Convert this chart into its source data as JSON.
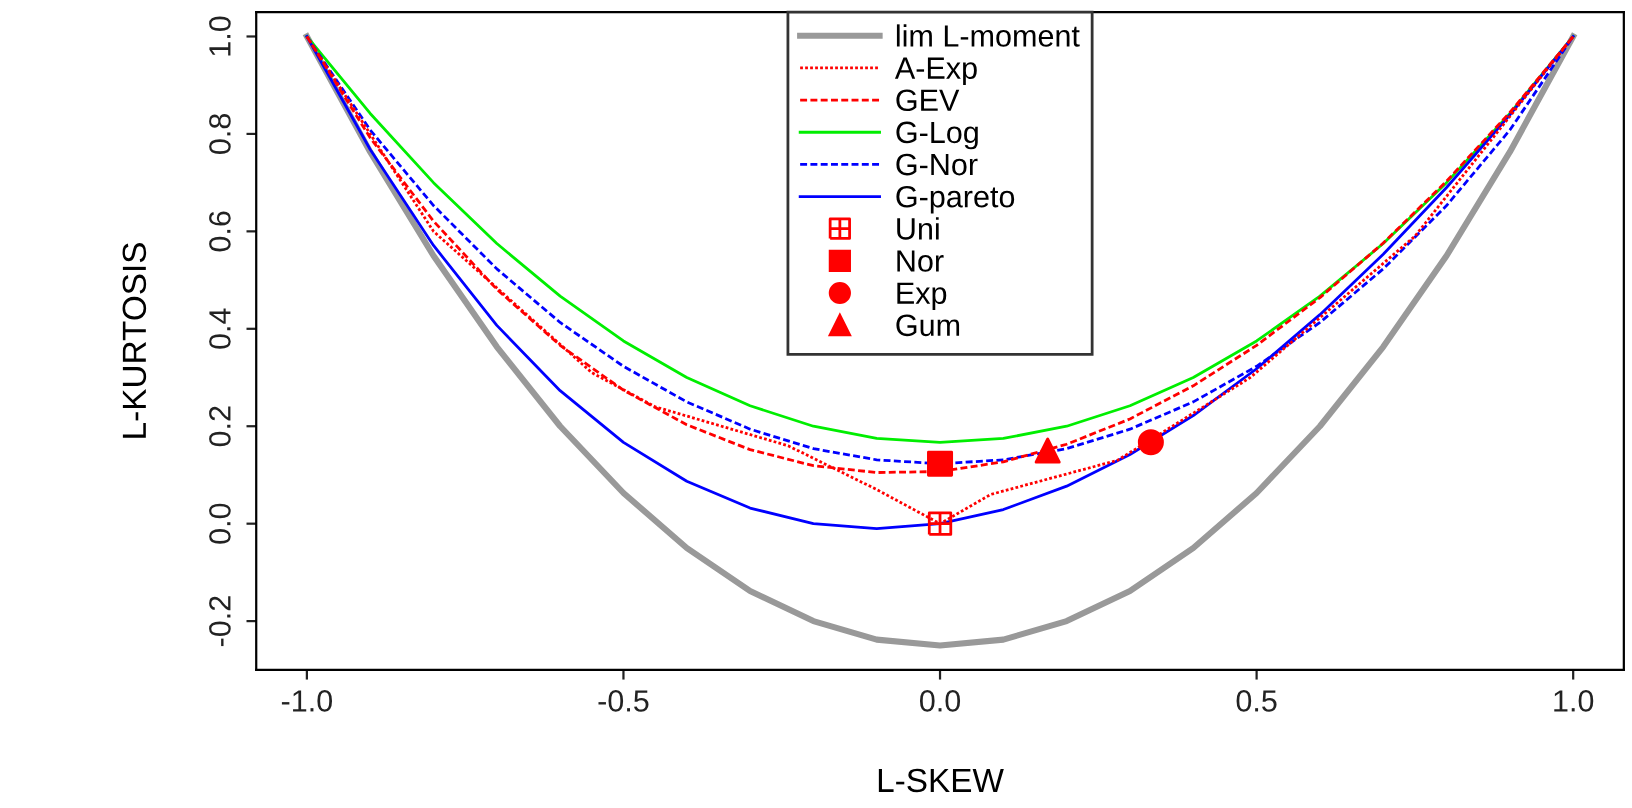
{
  "chart_data": {
    "type": "line",
    "xlabel": "L-SKEW",
    "ylabel": "L-KURTOSIS",
    "xlim": [
      -1.08,
      1.08
    ],
    "xticks": [
      {
        "value": -1,
        "label": "-1.0"
      },
      {
        "value": -0.5,
        "label": "-0.5"
      },
      {
        "value": 0,
        "label": "0.0"
      },
      {
        "value": 0.5,
        "label": "0.5"
      },
      {
        "value": 1,
        "label": "1.0"
      }
    ],
    "ylim": [
      -0.3,
      1.05
    ],
    "yticks": [
      {
        "value": -0.2,
        "label": "-0.2"
      },
      {
        "value": 0,
        "label": "0.0"
      },
      {
        "value": 0.2,
        "label": "0.2"
      },
      {
        "value": 0.4,
        "label": "0.4"
      },
      {
        "value": 0.6,
        "label": "0.6"
      },
      {
        "value": 0.8,
        "label": "0.8"
      },
      {
        "value": 1,
        "label": "1.0"
      }
    ],
    "grid": false,
    "legend": "top",
    "x": [
      -1,
      -0.9,
      -0.8,
      -0.7,
      -0.6,
      -0.5,
      -0.4,
      -0.3,
      -0.2,
      -0.1,
      0,
      0.1,
      0.2,
      0.3,
      0.4,
      0.5,
      0.6,
      0.7,
      0.8,
      0.9,
      1
    ],
    "series": [
      {
        "name": "lim L-moment",
        "color": "#999999",
        "line_style": "solid",
        "values": [
          1,
          0.763,
          0.55,
          0.363,
          0.2,
          0.063,
          -0.05,
          -0.138,
          -0.2,
          -0.238,
          -0.25,
          -0.238,
          -0.2,
          -0.138,
          -0.05,
          0.063,
          0.2,
          0.363,
          0.55,
          0.763,
          1
        ]
      },
      {
        "name": "A-Exp",
        "color": "#ff0000",
        "line_style": "dotted",
        "x": [
          -1,
          -0.8,
          -0.55,
          -0.45,
          -0.24,
          -0.1,
          0,
          0.08,
          0.28,
          0.33,
          0.49,
          0.75,
          1
        ],
        "values": [
          1,
          0.6,
          0.31,
          0.24,
          0.16,
          0.07,
          0,
          0.06,
          0.13,
          0.17,
          0.3,
          0.59,
          1
        ]
      },
      {
        "name": "GEV",
        "color": "#ff0000",
        "line_style": "dashed",
        "values": [
          1,
          0.792,
          0.621,
          0.481,
          0.366,
          0.274,
          0.203,
          0.152,
          0.119,
          0.105,
          0.107,
          0.127,
          0.163,
          0.215,
          0.283,
          0.366,
          0.464,
          0.576,
          0.703,
          0.844,
          1
        ]
      },
      {
        "name": "G-Log",
        "color": "#00ee00",
        "line_style": "solid",
        "values": [
          1,
          0.842,
          0.7,
          0.575,
          0.467,
          0.375,
          0.3,
          0.242,
          0.2,
          0.175,
          0.167,
          0.175,
          0.2,
          0.242,
          0.3,
          0.375,
          0.467,
          0.575,
          0.7,
          0.842,
          1
        ]
      },
      {
        "name": "G-Nor",
        "color": "#0000ff",
        "line_style": "dashed",
        "values": [
          1,
          0.808,
          0.653,
          0.523,
          0.413,
          0.323,
          0.25,
          0.194,
          0.154,
          0.131,
          0.123,
          0.131,
          0.154,
          0.194,
          0.25,
          0.323,
          0.413,
          0.523,
          0.653,
          0.808,
          1
        ]
      },
      {
        "name": "G-pareto",
        "color": "#0000ff",
        "line_style": "solid",
        "values": [
          1,
          0.768,
          0.571,
          0.407,
          0.273,
          0.167,
          0.087,
          0.032,
          0,
          -0.01,
          0,
          0.029,
          0.077,
          0.142,
          0.222,
          0.318,
          0.429,
          0.553,
          0.69,
          0.839,
          1
        ]
      },
      {
        "name": "Uni",
        "type": "scatter",
        "marker": "cross",
        "color": "#ff0000",
        "x": [
          0
        ],
        "values": [
          0
        ]
      },
      {
        "name": "Nor",
        "type": "scatter",
        "marker": "square",
        "color": "#ff0000",
        "x": [
          0
        ],
        "values": [
          0.123
        ]
      },
      {
        "name": "Exp",
        "type": "scatter",
        "marker": "circle",
        "color": "#ff0000",
        "x": [
          0.333
        ],
        "values": [
          0.167
        ]
      },
      {
        "name": "Gum",
        "type": "scatter",
        "marker": "triangle",
        "color": "#ff0000",
        "x": [
          0.17
        ],
        "values": [
          0.15
        ]
      }
    ]
  }
}
